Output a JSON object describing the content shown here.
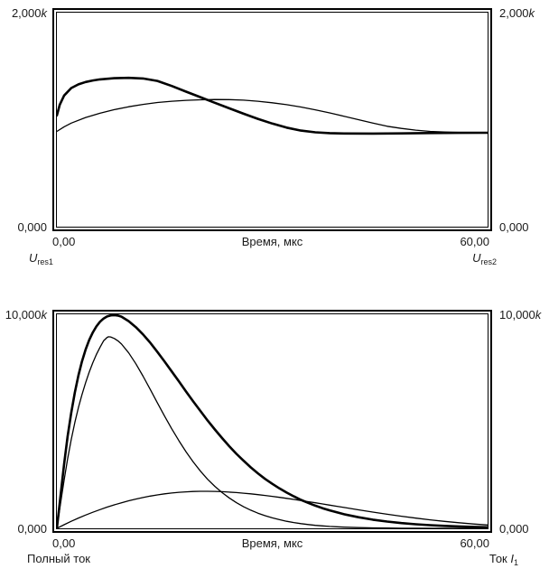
{
  "page": {
    "background": "#ffffff",
    "stroke_color": "#000000"
  },
  "chart_data": [
    {
      "type": "line",
      "title": "",
      "xlabel": "Время, мкс",
      "ylabel": "",
      "x_range": [
        0,
        60
      ],
      "y_range": [
        0,
        2000
      ],
      "grid": false,
      "legend": "none",
      "x_ticks": {
        "left": "0,00",
        "right": "60,00"
      },
      "y_axis_left": {
        "max": {
          "num": "2,000",
          "suffix": "k"
        },
        "min": {
          "num": "0,000",
          "suffix": ""
        }
      },
      "y_axis_right": {
        "max": {
          "num": "2,000",
          "suffix": "k"
        },
        "min": {
          "num": "0,000",
          "suffix": ""
        }
      },
      "footer_left": {
        "text": "",
        "italic": "U",
        "sub": "res1"
      },
      "footer_right": {
        "text": "",
        "italic": "U",
        "sub": "res2"
      },
      "series": [
        {
          "id": "u-res1-thick",
          "style": "thick",
          "stroke_width": 2.6,
          "points": [
            [
              0,
              1040
            ],
            [
              0.4,
              1140
            ],
            [
              1,
              1225
            ],
            [
              2,
              1295
            ],
            [
              3,
              1330
            ],
            [
              4,
              1352
            ],
            [
              5,
              1366
            ],
            [
              6,
              1376
            ],
            [
              8,
              1387
            ],
            [
              10,
              1391
            ],
            [
              12,
              1385
            ],
            [
              14,
              1362
            ],
            [
              16,
              1315
            ],
            [
              18,
              1262
            ],
            [
              20,
              1210
            ],
            [
              22,
              1158
            ],
            [
              24,
              1106
            ],
            [
              26,
              1056
            ],
            [
              28,
              1008
            ],
            [
              30,
              964
            ],
            [
              32,
              926
            ],
            [
              34,
              898
            ],
            [
              36,
              882
            ],
            [
              38,
              874
            ],
            [
              40,
              871
            ],
            [
              44,
              870
            ],
            [
              48,
              872
            ],
            [
              52,
              875
            ],
            [
              56,
              877
            ],
            [
              60,
              878
            ]
          ]
        },
        {
          "id": "u-res2-thin",
          "style": "thin",
          "stroke_width": 1.3,
          "points": [
            [
              0,
              890
            ],
            [
              1,
              933
            ],
            [
              2,
              968
            ],
            [
              4,
              1020
            ],
            [
              6,
              1060
            ],
            [
              8,
              1094
            ],
            [
              10,
              1121
            ],
            [
              12,
              1143
            ],
            [
              14,
              1160
            ],
            [
              16,
              1172
            ],
            [
              18,
              1181
            ],
            [
              20,
              1186
            ],
            [
              22,
              1188
            ],
            [
              24,
              1187
            ],
            [
              26,
              1182
            ],
            [
              28,
              1172
            ],
            [
              30,
              1158
            ],
            [
              32,
              1140
            ],
            [
              34,
              1118
            ],
            [
              36,
              1092
            ],
            [
              38,
              1063
            ],
            [
              40,
              1032
            ],
            [
              42,
              1000
            ],
            [
              44,
              968
            ],
            [
              46,
              938
            ],
            [
              48,
              918
            ],
            [
              50,
              902
            ],
            [
              52,
              890
            ],
            [
              54,
              884
            ],
            [
              56,
              881
            ],
            [
              58,
              879
            ],
            [
              60,
              878
            ]
          ]
        }
      ]
    },
    {
      "type": "line",
      "title": "",
      "xlabel": "Время, мкс",
      "ylabel": "",
      "x_range": [
        0,
        60
      ],
      "y_range": [
        0,
        10000
      ],
      "grid": false,
      "legend": "none",
      "x_ticks": {
        "left": "0,00",
        "right": "60,00"
      },
      "y_axis_left": {
        "max": {
          "num": "10,000",
          "suffix": "k"
        },
        "min": {
          "num": "0,000",
          "suffix": ""
        }
      },
      "y_axis_right": {
        "max": {
          "num": "10,000",
          "suffix": "k"
        },
        "min": {
          "num": "0,000",
          "suffix": ""
        }
      },
      "footer_left": {
        "text": "Полный ток",
        "italic": "",
        "sub": ""
      },
      "footer_right": {
        "text": "Ток ",
        "italic": "I",
        "sub": "1"
      },
      "series": [
        {
          "id": "full-current-thick",
          "style": "thick",
          "stroke_width": 2.6,
          "points": [
            [
              0,
              0
            ],
            [
              0.3,
              900
            ],
            [
              0.7,
              2100
            ],
            [
              1,
              3000
            ],
            [
              1.5,
              4300
            ],
            [
              2,
              5400
            ],
            [
              2.5,
              6350
            ],
            [
              3,
              7150
            ],
            [
              3.5,
              7800
            ],
            [
              4,
              8350
            ],
            [
              4.5,
              8800
            ],
            [
              5,
              9150
            ],
            [
              5.5,
              9430
            ],
            [
              6,
              9650
            ],
            [
              6.5,
              9800
            ],
            [
              7,
              9900
            ],
            [
              7.5,
              9950
            ],
            [
              8,
              9960
            ],
            [
              8.5,
              9940
            ],
            [
              9,
              9890
            ],
            [
              10,
              9680
            ],
            [
              11,
              9400
            ],
            [
              12,
              9060
            ],
            [
              13,
              8670
            ],
            [
              14,
              8240
            ],
            [
              15,
              7790
            ],
            [
              16,
              7330
            ],
            [
              17,
              6860
            ],
            [
              18,
              6390
            ],
            [
              19,
              5930
            ],
            [
              20,
              5480
            ],
            [
              21,
              5040
            ],
            [
              22,
              4620
            ],
            [
              23,
              4220
            ],
            [
              24,
              3840
            ],
            [
              25,
              3480
            ],
            [
              26,
              3160
            ],
            [
              27,
              2850
            ],
            [
              28,
              2570
            ],
            [
              29,
              2310
            ],
            [
              30,
              2080
            ],
            [
              31,
              1865
            ],
            [
              32,
              1670
            ],
            [
              33,
              1495
            ],
            [
              34,
              1330
            ],
            [
              35,
              1190
            ],
            [
              36,
              1060
            ],
            [
              37,
              940
            ],
            [
              38,
              840
            ],
            [
              39,
              745
            ],
            [
              40,
              660
            ],
            [
              42,
              520
            ],
            [
              44,
              405
            ],
            [
              46,
              315
            ],
            [
              48,
              245
            ],
            [
              50,
              190
            ],
            [
              52,
              148
            ],
            [
              54,
              114
            ],
            [
              56,
              88
            ],
            [
              58,
              68
            ],
            [
              60,
              52
            ]
          ]
        },
        {
          "id": "current-i1-thin",
          "style": "thin",
          "stroke_width": 1.3,
          "points": [
            [
              0,
              0
            ],
            [
              0.3,
              700
            ],
            [
              0.7,
              1600
            ],
            [
              1,
              2250
            ],
            [
              1.5,
              3250
            ],
            [
              2,
              4150
            ],
            [
              2.5,
              4950
            ],
            [
              3,
              5650
            ],
            [
              3.5,
              6250
            ],
            [
              4,
              6800
            ],
            [
              4.5,
              7300
            ],
            [
              5,
              7740
            ],
            [
              5.5,
              8120
            ],
            [
              6,
              8450
            ],
            [
              6.5,
              8760
            ],
            [
              7,
              8920
            ],
            [
              7.2,
              8950
            ],
            [
              7.5,
              8940
            ],
            [
              8,
              8870
            ],
            [
              8.5,
              8760
            ],
            [
              9,
              8610
            ],
            [
              10,
              8200
            ],
            [
              11,
              7690
            ],
            [
              12,
              7110
            ],
            [
              13,
              6490
            ],
            [
              14,
              5860
            ],
            [
              15,
              5240
            ],
            [
              16,
              4650
            ],
            [
              17,
              4090
            ],
            [
              18,
              3570
            ],
            [
              19,
              3100
            ],
            [
              20,
              2670
            ],
            [
              21,
              2290
            ],
            [
              22,
              1960
            ],
            [
              23,
              1670
            ],
            [
              24,
              1420
            ],
            [
              25,
              1200
            ],
            [
              26,
              1010
            ],
            [
              27,
              850
            ],
            [
              28,
              710
            ],
            [
              29,
              590
            ],
            [
              30,
              490
            ],
            [
              31,
              405
            ],
            [
              32,
              330
            ],
            [
              33,
              268
            ],
            [
              34,
              218
            ],
            [
              35,
              176
            ],
            [
              36,
              140
            ],
            [
              37,
              112
            ],
            [
              38,
              89
            ],
            [
              39,
              70
            ],
            [
              40,
              55
            ],
            [
              42,
              33
            ],
            [
              44,
              19
            ],
            [
              46,
              11
            ],
            [
              48,
              6
            ],
            [
              50,
              3
            ],
            [
              55,
              1
            ],
            [
              60,
              0
            ]
          ]
        },
        {
          "id": "component-thin",
          "style": "thin",
          "stroke_width": 1.3,
          "points": [
            [
              0,
              0
            ],
            [
              1,
              170
            ],
            [
              2,
              330
            ],
            [
              3,
              480
            ],
            [
              4,
              620
            ],
            [
              5,
              750
            ],
            [
              6,
              875
            ],
            [
              7,
              990
            ],
            [
              8,
              1095
            ],
            [
              9,
              1195
            ],
            [
              10,
              1285
            ],
            [
              11,
              1365
            ],
            [
              12,
              1440
            ],
            [
              13,
              1505
            ],
            [
              14,
              1560
            ],
            [
              15,
              1610
            ],
            [
              16,
              1650
            ],
            [
              17,
              1685
            ],
            [
              18,
              1705
            ],
            [
              19,
              1720
            ],
            [
              20,
              1730
            ],
            [
              21,
              1730
            ],
            [
              22,
              1725
            ],
            [
              23,
              1712
            ],
            [
              24,
              1694
            ],
            [
              25,
              1670
            ],
            [
              26,
              1642
            ],
            [
              27,
              1610
            ],
            [
              28,
              1574
            ],
            [
              29,
              1535
            ],
            [
              30,
              1492
            ],
            [
              31,
              1447
            ],
            [
              32,
              1400
            ],
            [
              33,
              1350
            ],
            [
              34,
              1299
            ],
            [
              35,
              1246
            ],
            [
              36,
              1192
            ],
            [
              37,
              1138
            ],
            [
              38,
              1083
            ],
            [
              39,
              1028
            ],
            [
              40,
              973
            ],
            [
              42,
              865
            ],
            [
              44,
              760
            ],
            [
              46,
              660
            ],
            [
              48,
              565
            ],
            [
              50,
              478
            ],
            [
              52,
              398
            ],
            [
              54,
              325
            ],
            [
              56,
              260
            ],
            [
              58,
              203
            ],
            [
              60,
              155
            ]
          ]
        }
      ]
    }
  ]
}
